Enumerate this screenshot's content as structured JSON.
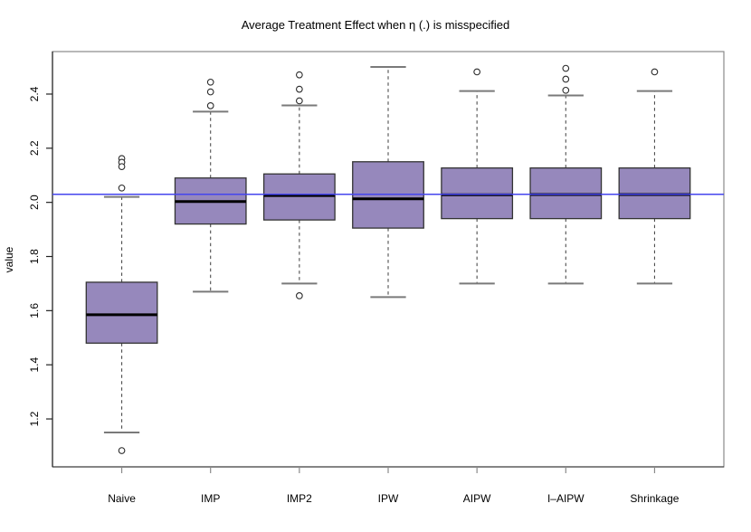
{
  "chart_data": {
    "type": "boxplot",
    "title": "Average Treatment Effect when η (.) is misspecified",
    "xlabel": "",
    "ylabel": "value",
    "categories": [
      "Naive",
      "IMP",
      "IMP2",
      "IPW",
      "AIPW",
      "I–AIPW",
      "Shrinkage"
    ],
    "y_tick_labels": [
      "1.2",
      "1.4",
      "1.6",
      "1.8",
      "2.0",
      "2.2",
      "2.4"
    ],
    "y_tick_values": [
      1.2,
      1.4,
      1.6,
      1.8,
      2.0,
      2.2,
      2.4
    ],
    "ylim": [
      1.023,
      2.557
    ],
    "grid": false,
    "legend": null,
    "reference_line": {
      "value": 2.03,
      "color": "#4545EE"
    },
    "boxes": [
      {
        "category": "Naive",
        "whisker_low": 1.15,
        "q1": 1.48,
        "median": 1.585,
        "q3": 1.705,
        "whisker_high": 2.02,
        "outliers": [
          2.162,
          2.148,
          2.132,
          2.053,
          1.083
        ]
      },
      {
        "category": "IMP",
        "whisker_low": 1.67,
        "q1": 1.92,
        "median": 2.003,
        "q3": 2.09,
        "whisker_high": 2.335,
        "outliers": [
          2.444,
          2.408,
          2.357
        ]
      },
      {
        "category": "IMP2",
        "whisker_low": 1.7,
        "q1": 1.935,
        "median": 2.025,
        "q3": 2.105,
        "whisker_high": 2.358,
        "outliers": [
          2.471,
          2.418,
          2.375,
          1.655
        ]
      },
      {
        "category": "IPW",
        "whisker_low": 1.65,
        "q1": 1.905,
        "median": 2.013,
        "q3": 2.15,
        "whisker_high": 2.5,
        "outliers": []
      },
      {
        "category": "AIPW",
        "whisker_low": 1.7,
        "q1": 1.94,
        "median": 2.028,
        "q3": 2.127,
        "whisker_high": 2.411,
        "outliers": [
          2.482
        ]
      },
      {
        "category": "I–AIPW",
        "whisker_low": 1.7,
        "q1": 1.94,
        "median": 2.029,
        "q3": 2.127,
        "whisker_high": 2.395,
        "outliers": [
          2.495,
          2.455,
          2.414
        ]
      },
      {
        "category": "Shrinkage",
        "whisker_low": 1.7,
        "q1": 1.94,
        "median": 2.029,
        "q3": 2.127,
        "whisker_high": 2.411,
        "outliers": [
          2.482
        ]
      }
    ],
    "colors": {
      "box_fill": "#9688BC",
      "box_border": "#333333",
      "median": "#000000",
      "whisker": "#4D4D4D",
      "cap": "#7A7A7A",
      "frame": "#8A8A8A",
      "axis": "#222222",
      "outlier_stroke": "#2B2B2B",
      "reference_line": "#4545EE",
      "background": "#FFFFFF"
    }
  }
}
